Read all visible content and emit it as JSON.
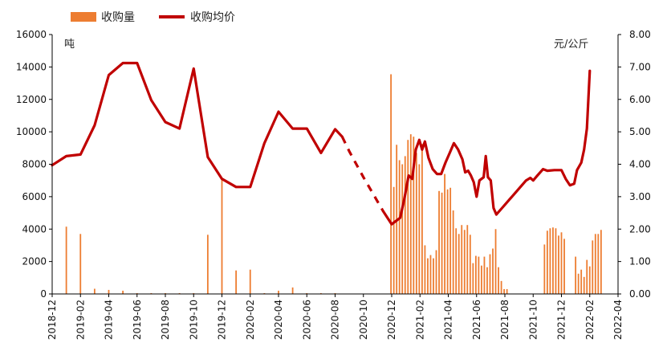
{
  "chart_data": {
    "type": "bar+line",
    "title": "",
    "legend": [
      {
        "label": "收购量",
        "kind": "bar",
        "color": "#ED7D31"
      },
      {
        "label": "收购均价",
        "kind": "line",
        "color": "#C00000"
      }
    ],
    "legend_position": "top-left",
    "left_axis": {
      "unit": "吨",
      "min": 0,
      "max": 16000,
      "step": 2000
    },
    "right_axis": {
      "unit": "元/公斤",
      "min": 0,
      "max": 8,
      "step": 1
    },
    "x_range": [
      "2018-12",
      "2022-04"
    ],
    "x_ticks": [
      "2018-12",
      "2019-02",
      "2019-04",
      "2019-06",
      "2019-08",
      "2019-10",
      "2019-12",
      "2020-02",
      "2020-04",
      "2020-06",
      "2020-08",
      "2020-10",
      "2020-12",
      "2021-02",
      "2021-04",
      "2021-06",
      "2021-08",
      "2021-10",
      "2021-12",
      "2022-02",
      "2022-04"
    ],
    "series": [
      {
        "name": "收购量",
        "type": "bar",
        "axis": "left",
        "color": "#ED7D31",
        "points": [
          [
            1.0,
            4150
          ],
          [
            2.0,
            3700
          ],
          [
            3.0,
            320
          ],
          [
            4.0,
            250
          ],
          [
            5.0,
            200
          ],
          [
            6.0,
            50
          ],
          [
            7.0,
            50
          ],
          [
            8.0,
            50
          ],
          [
            9.0,
            50
          ],
          [
            10.0,
            50
          ],
          [
            11.0,
            3650
          ],
          [
            12.0,
            7050
          ],
          [
            13.0,
            1450
          ],
          [
            14.0,
            1500
          ],
          [
            15.0,
            50
          ],
          [
            16.0,
            200
          ],
          [
            17.0,
            400
          ],
          [
            18.0,
            50
          ],
          [
            19.0,
            50
          ],
          [
            20.0,
            50
          ],
          [
            23.95,
            13550
          ],
          [
            24.15,
            6600
          ],
          [
            24.35,
            9200
          ],
          [
            24.55,
            8250
          ],
          [
            24.75,
            8000
          ],
          [
            24.95,
            8500
          ],
          [
            25.15,
            9500
          ],
          [
            25.35,
            9850
          ],
          [
            25.55,
            9700
          ],
          [
            25.75,
            8700
          ],
          [
            25.95,
            8000
          ],
          [
            26.15,
            9250
          ],
          [
            26.35,
            3000
          ],
          [
            26.55,
            2200
          ],
          [
            26.75,
            2400
          ],
          [
            26.95,
            2200
          ],
          [
            27.15,
            2700
          ],
          [
            27.35,
            6350
          ],
          [
            27.55,
            6250
          ],
          [
            27.75,
            7400
          ],
          [
            27.95,
            6450
          ],
          [
            28.15,
            6550
          ],
          [
            28.35,
            5150
          ],
          [
            28.55,
            4050
          ],
          [
            28.75,
            3700
          ],
          [
            28.95,
            4250
          ],
          [
            29.15,
            3950
          ],
          [
            29.35,
            4250
          ],
          [
            29.55,
            3650
          ],
          [
            29.75,
            1900
          ],
          [
            29.95,
            2350
          ],
          [
            30.15,
            2300
          ],
          [
            30.35,
            1750
          ],
          [
            30.55,
            2300
          ],
          [
            30.75,
            1650
          ],
          [
            30.95,
            2450
          ],
          [
            31.15,
            2800
          ],
          [
            31.35,
            4000
          ],
          [
            31.55,
            1650
          ],
          [
            31.75,
            800
          ],
          [
            31.95,
            300
          ],
          [
            32.15,
            300
          ],
          [
            34.8,
            3050
          ],
          [
            35.0,
            3900
          ],
          [
            35.2,
            4050
          ],
          [
            35.4,
            4100
          ],
          [
            35.6,
            4050
          ],
          [
            35.8,
            3600
          ],
          [
            36.0,
            3800
          ],
          [
            36.2,
            3400
          ],
          [
            37.0,
            2300
          ],
          [
            37.2,
            1250
          ],
          [
            37.4,
            1500
          ],
          [
            37.6,
            1050
          ],
          [
            37.8,
            2100
          ],
          [
            38.0,
            1700
          ],
          [
            38.2,
            3300
          ],
          [
            38.4,
            3700
          ],
          [
            38.6,
            3700
          ],
          [
            38.8,
            3950
          ]
        ]
      },
      {
        "name": "收购均价",
        "type": "line",
        "axis": "right",
        "color": "#C00000",
        "solid_segments": [
          [
            [
              0,
              3.97
            ],
            [
              1,
              4.25
            ],
            [
              2,
              4.3
            ],
            [
              3,
              5.2
            ],
            [
              4,
              6.75
            ],
            [
              5,
              7.12
            ],
            [
              6,
              7.12
            ],
            [
              7,
              5.98
            ],
            [
              8,
              5.3
            ],
            [
              9,
              5.1
            ],
            [
              10,
              6.95
            ],
            [
              11,
              4.22
            ],
            [
              12,
              3.55
            ],
            [
              13,
              3.3
            ],
            [
              14,
              3.3
            ],
            [
              15,
              4.65
            ],
            [
              16,
              5.62
            ],
            [
              17,
              5.1
            ],
            [
              18,
              5.1
            ],
            [
              19,
              4.35
            ],
            [
              20,
              5.08
            ],
            [
              20.5,
              4.85
            ]
          ],
          [
            [
              23.4,
              2.55
            ],
            [
              23.7,
              2.35
            ],
            [
              24.0,
              2.15
            ],
            [
              24.3,
              2.25
            ],
            [
              24.6,
              2.35
            ],
            [
              24.9,
              2.95
            ],
            [
              25.2,
              3.65
            ],
            [
              25.45,
              3.55
            ],
            [
              25.7,
              4.45
            ],
            [
              25.95,
              4.75
            ],
            [
              26.15,
              4.45
            ],
            [
              26.35,
              4.7
            ],
            [
              26.6,
              4.2
            ],
            [
              26.9,
              3.85
            ],
            [
              27.2,
              3.7
            ],
            [
              27.5,
              3.7
            ],
            [
              27.8,
              4.05
            ],
            [
              28.1,
              4.35
            ],
            [
              28.4,
              4.65
            ],
            [
              28.7,
              4.45
            ],
            [
              29.0,
              4.15
            ],
            [
              29.2,
              3.75
            ],
            [
              29.4,
              3.8
            ],
            [
              29.6,
              3.65
            ],
            [
              29.8,
              3.45
            ],
            [
              30.0,
              3.0
            ],
            [
              30.2,
              3.5
            ],
            [
              30.5,
              3.6
            ],
            [
              30.65,
              4.25
            ],
            [
              30.8,
              3.6
            ],
            [
              31.0,
              3.5
            ],
            [
              31.2,
              2.65
            ],
            [
              31.4,
              2.45
            ],
            [
              31.8,
              2.65
            ],
            [
              32.5,
              3.0
            ],
            [
              33.0,
              3.25
            ],
            [
              33.5,
              3.5
            ],
            [
              33.8,
              3.58
            ],
            [
              34.0,
              3.5
            ],
            [
              34.3,
              3.65
            ],
            [
              34.7,
              3.85
            ],
            [
              35.0,
              3.8
            ],
            [
              35.5,
              3.82
            ],
            [
              36.0,
              3.82
            ],
            [
              36.3,
              3.55
            ],
            [
              36.6,
              3.35
            ],
            [
              36.9,
              3.4
            ],
            [
              37.1,
              3.82
            ],
            [
              37.4,
              4.05
            ],
            [
              37.6,
              4.45
            ],
            [
              37.8,
              5.1
            ],
            [
              38.0,
              6.88
            ]
          ]
        ],
        "dashed_segments": [
          [
            [
              20.5,
              4.85
            ],
            [
              21.0,
              4.4
            ],
            [
              22.0,
              3.6
            ],
            [
              23.4,
              2.55
            ]
          ]
        ]
      }
    ]
  }
}
